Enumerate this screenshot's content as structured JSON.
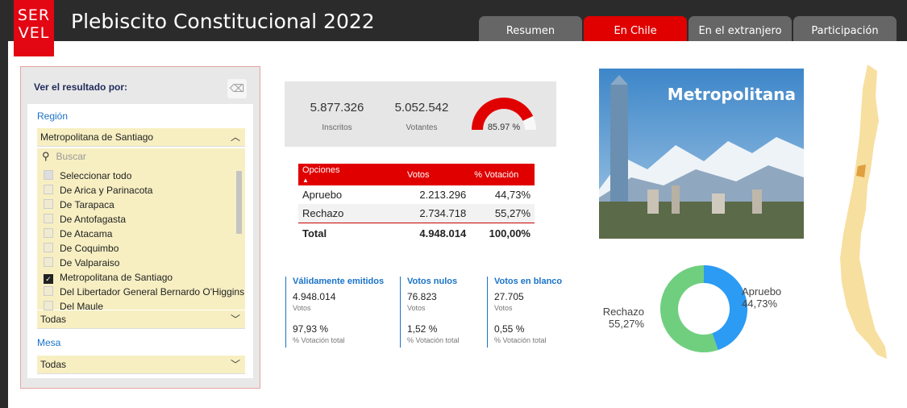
{
  "header": {
    "logo_line1": "SER",
    "logo_line2": "VEL",
    "title": "Plebiscito Constitucional 2022",
    "tabs": [
      {
        "label": "Resumen",
        "active": false
      },
      {
        "label": "En Chile",
        "active": true
      },
      {
        "label": "En el extranjero",
        "active": false
      },
      {
        "label": "Participación",
        "active": false
      }
    ]
  },
  "filter": {
    "title": "Ver el resultado por:",
    "region_label": "Región",
    "region_selected": "Metropolitana de Santiago",
    "search_placeholder": "Buscar",
    "items": [
      {
        "label": "Seleccionar todo",
        "state": "partial"
      },
      {
        "label": "De Arica y Parinacota",
        "state": "unchecked"
      },
      {
        "label": "De Tarapaca",
        "state": "unchecked"
      },
      {
        "label": "De Antofagasta",
        "state": "unchecked"
      },
      {
        "label": "De Atacama",
        "state": "unchecked"
      },
      {
        "label": "De Coquimbo",
        "state": "unchecked"
      },
      {
        "label": "De Valparaiso",
        "state": "unchecked"
      },
      {
        "label": "Metropolitana de Santiago",
        "state": "checked"
      },
      {
        "label": "Del Libertador General Bernardo O'Higgins",
        "state": "unchecked"
      },
      {
        "label": "Del Maule",
        "state": "unchecked"
      }
    ],
    "comuna_value": "Todas",
    "mesa_label": "Mesa",
    "mesa_value": "Todas"
  },
  "kpi": {
    "inscritos_value": "5.877.326",
    "inscritos_label": "Inscritos",
    "votantes_value": "5.052.542",
    "votantes_label": "Votantes",
    "gauge_value": "85.97 %",
    "gauge_fraction": 0.8597
  },
  "results": {
    "headers": [
      "Opciones",
      "Votos",
      "% Votación"
    ],
    "rows": [
      {
        "option": "Apruebo",
        "votes": "2.213.296",
        "pct": "44,73%"
      },
      {
        "option": "Rechazo",
        "votes": "2.734.718",
        "pct": "55,27%"
      }
    ],
    "total": {
      "option": "Total",
      "votes": "4.948.014",
      "pct": "100,00%"
    }
  },
  "stats": [
    {
      "title": "Válidamente emitidos",
      "value": "4.948.014",
      "value_label": "Votos",
      "pct": "97,93 %",
      "pct_label": "% Votación total"
    },
    {
      "title": "Votos nulos",
      "value": "76.823",
      "value_label": "Votos",
      "pct": "1,52 %",
      "pct_label": "% Votación total"
    },
    {
      "title": "Votos en blanco",
      "value": "27.705",
      "value_label": "Votos",
      "pct": "0,55 %",
      "pct_label": "% Votación total"
    }
  ],
  "region_photo_title": "Metropolitana",
  "donut": {
    "apruebo_label": "Apruebo",
    "apruebo_pct": "44,73%",
    "apruebo_value": 44.73,
    "apruebo_color": "#2b9bf4",
    "rechazo_label": "Rechazo",
    "rechazo_pct": "55,27%",
    "rechazo_value": 55.27,
    "rechazo_color": "#6fcf7f"
  },
  "colors": {
    "accent": "#e00000",
    "link": "#1a73c9",
    "map_fill": "#f7dfa0",
    "map_highlight": "#e0a040"
  }
}
